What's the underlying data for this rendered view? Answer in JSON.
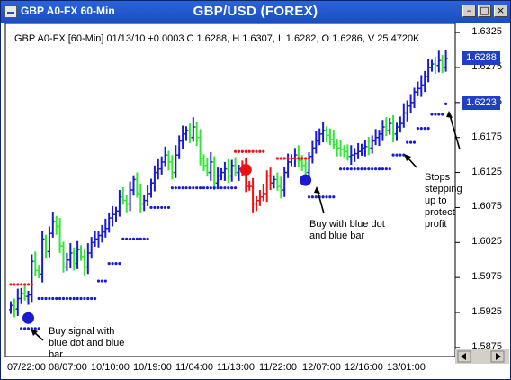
{
  "window": {
    "title": "GBP A0-FX 60-Min",
    "chart_title": "GBP/USD (FOREX)",
    "buttons": [
      "minimize",
      "maximize",
      "close"
    ]
  },
  "info_line": "GBP A0-FX [60-Min] 01/13/10  +0.0003 C 1.6288, H 1.6307, L 1.6282, O 1.6286, V 25.4720K",
  "price_boxes": [
    {
      "label": "1.6288",
      "value": 1.6288
    },
    {
      "label": "1.6223",
      "value": 1.6223
    }
  ],
  "annotations": {
    "buy_signal": "Buy signal with blue dot and blue bar",
    "buy_blue": "Buy with blue dot and blue bar",
    "stops": "Stops stepping up to protect profit"
  },
  "colors": {
    "up_bar": "#1a1ad0",
    "down_bar": "#33e633",
    "sell_bar": "#ee1111",
    "stop_dot_red": "#ee1111",
    "stop_dot_blue": "#1a1ad0",
    "price_box": "#1f3fc4",
    "titlebar": "#2a63d8"
  },
  "chart_data": {
    "type": "ohlc",
    "title": "GBP/USD (FOREX)",
    "y_ticks": [
      "1.6325",
      "1.6275",
      "1.6225",
      "1.6175",
      "1.6125",
      "1.6075",
      "1.6025",
      "1.5975",
      "1.5925",
      "1.5875"
    ],
    "ylim": [
      1.5862,
      1.6338
    ],
    "x_ticks": [
      "07/22:00",
      "08/07:00",
      "10/10:00",
      "10/19:00",
      "11/04:00",
      "11/13:00",
      "11/22:00",
      "12/07:00",
      "12/16:00",
      "13/01:00"
    ],
    "grid": false,
    "signals": [
      {
        "type": "buy",
        "index": 5,
        "price": 1.5917,
        "color": "blue"
      },
      {
        "type": "sell",
        "index": 67,
        "price": 1.6129,
        "color": "red"
      },
      {
        "type": "buy",
        "index": 84,
        "price": 1.6114,
        "color": "blue"
      }
    ],
    "closes": [
      1.5935,
      1.593,
      1.5945,
      1.5952,
      1.5948,
      1.595,
      1.5998,
      1.5985,
      1.598,
      1.603,
      1.6012,
      1.6038,
      1.6055,
      1.6048,
      1.602,
      1.599,
      1.6,
      1.601,
      1.5995,
      1.6015,
      1.6005,
      1.599,
      1.601,
      1.6025,
      1.603,
      1.6035,
      1.604,
      1.6045,
      1.606,
      1.6065,
      1.607,
      1.609,
      1.6085,
      1.608,
      1.61,
      1.6115,
      1.6095,
      1.608,
      1.6085,
      1.6095,
      1.611,
      1.6125,
      1.613,
      1.614,
      1.615,
      1.614,
      1.6125,
      1.615,
      1.617,
      1.618,
      1.6185,
      1.6175,
      1.619,
      1.6175,
      1.6145,
      1.6135,
      1.6125,
      1.614,
      1.611,
      1.612,
      1.6125,
      1.613,
      1.612,
      1.6135,
      1.6125,
      1.613,
      1.6132,
      1.6105,
      1.6105,
      1.608,
      1.6085,
      1.609,
      1.6095,
      1.612,
      1.611,
      1.6115,
      1.6105,
      1.61,
      1.6125,
      1.614,
      1.6145,
      1.615,
      1.6142,
      1.6135,
      1.6125,
      1.6148,
      1.616,
      1.617,
      1.618,
      1.6185,
      1.6178,
      1.6172,
      1.6165,
      1.616,
      1.6158,
      1.6155,
      1.6148,
      1.615,
      1.6152,
      1.6155,
      1.616,
      1.6162,
      1.616,
      1.617,
      1.6175,
      1.618,
      1.619,
      1.6185,
      1.6195,
      1.618,
      1.619,
      1.6195,
      1.621,
      1.622,
      1.6225,
      1.624,
      1.6245,
      1.625,
      1.6262,
      1.6275,
      1.628,
      1.6278,
      1.6285,
      1.6275,
      1.6288
    ]
  }
}
